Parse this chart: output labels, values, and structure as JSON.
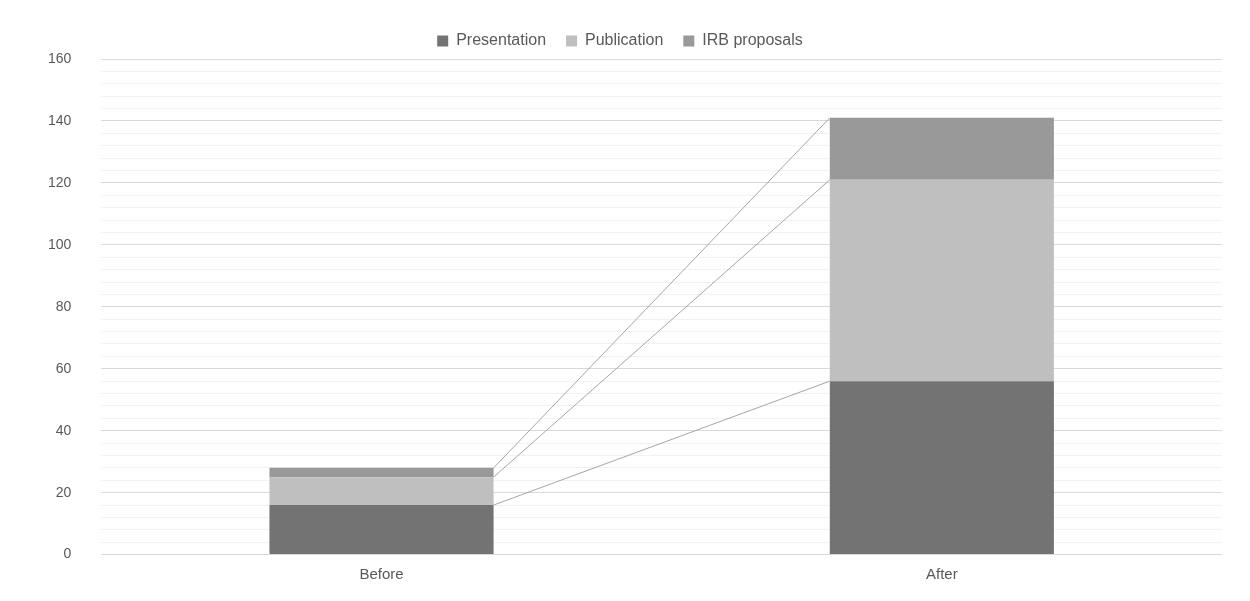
{
  "chart_data": {
    "type": "bar",
    "stacked": true,
    "categories": [
      "Before",
      "After"
    ],
    "series": [
      {
        "name": "Presentation",
        "color": "#737373",
        "values": [
          16,
          56
        ]
      },
      {
        "name": "Publication",
        "color": "#bfbfbf",
        "values": [
          9,
          65
        ]
      },
      {
        "name": "IRB proposals",
        "color": "#999999",
        "values": [
          3,
          20
        ]
      }
    ],
    "ylim": [
      0,
      160
    ],
    "yticks": [
      0,
      {
        "value": 4,
        "label": null
      },
      {
        "value": 8,
        "label": null
      },
      {
        "value": 12,
        "label": null
      },
      {
        "value": 16,
        "label": null
      },
      20,
      {
        "value": 24,
        "label": null
      },
      {
        "value": 28,
        "label": null
      },
      {
        "value": 32,
        "label": null
      },
      {
        "value": 36,
        "label": null
      },
      40,
      {
        "value": 44,
        "label": null
      },
      {
        "value": 48,
        "label": null
      },
      {
        "value": 52,
        "label": null
      },
      {
        "value": 56,
        "label": null
      },
      60,
      {
        "value": 64,
        "label": null
      },
      {
        "value": 68,
        "label": null
      },
      {
        "value": 72,
        "label": null
      },
      {
        "value": 76,
        "label": null
      },
      80,
      {
        "value": 84,
        "label": null
      },
      {
        "value": 88,
        "label": null
      },
      {
        "value": 92,
        "label": null
      },
      {
        "value": 96,
        "label": null
      },
      100,
      {
        "value": 104,
        "label": null
      },
      {
        "value": 108,
        "label": null
      },
      {
        "value": 112,
        "label": null
      },
      {
        "value": 116,
        "label": null
      },
      120,
      {
        "value": 124,
        "label": null
      },
      {
        "value": 128,
        "label": null
      },
      {
        "value": 132,
        "label": null
      },
      {
        "value": 136,
        "label": null
      },
      140,
      {
        "value": 144,
        "label": null
      },
      {
        "value": 148,
        "label": null
      },
      {
        "value": 152,
        "label": null
      },
      {
        "value": 156,
        "label": null
      },
      160
    ],
    "grid": "y",
    "legend": "top"
  }
}
